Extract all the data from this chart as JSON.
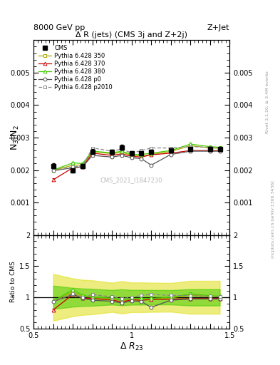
{
  "title": "Δ R (jets) (CMS 3j and Z+2j)",
  "xlabel": "Δ R_{23}",
  "ylabel_main": "N_{3}|N_{2}",
  "ylabel_ratio": "Ratio to CMS",
  "header_left": "8000 GeV pp",
  "header_right": "Z+Jet",
  "watermark": "CMS_2021_I1847230",
  "rivet_text": "Rivet 3.1.10; ≥ 3.4M events",
  "mcplots_text": "mcplots.cern.ch [arXiv:1306.3436]",
  "xlim": [
    0.5,
    1.5
  ],
  "ylim_main": [
    0.0,
    0.006
  ],
  "ylim_ratio": [
    0.5,
    2.0
  ],
  "yticks_main": [
    0.001,
    0.002,
    0.003,
    0.004,
    0.005
  ],
  "yticks_ratio": [
    0.5,
    1.0,
    1.5,
    2.0
  ],
  "x": [
    0.6,
    0.7,
    0.75,
    0.8,
    0.9,
    0.95,
    1.0,
    1.05,
    1.1,
    1.2,
    1.3,
    1.4,
    1.45
  ],
  "cms_y": [
    0.00213,
    0.00198,
    0.00213,
    0.00257,
    0.00256,
    0.0027,
    0.00252,
    0.00252,
    0.00256,
    0.0026,
    0.00265,
    0.00265,
    0.00265
  ],
  "cms_yerr": [
    8e-05,
    6e-05,
    6e-05,
    7e-05,
    6e-05,
    7e-05,
    6e-05,
    6e-05,
    6e-05,
    6e-05,
    7e-05,
    7e-05,
    7e-05
  ],
  "p350_y": [
    0.00199,
    0.00215,
    0.00215,
    0.00257,
    0.0025,
    0.00255,
    0.00245,
    0.00243,
    0.00248,
    0.00257,
    0.00275,
    0.00268,
    0.00267
  ],
  "p350_yerr": [
    4e-05,
    3e-05,
    3e-05,
    4e-05,
    3e-05,
    4e-05,
    3e-05,
    3e-05,
    3e-05,
    4e-05,
    5e-05,
    4e-05,
    4e-05
  ],
  "p370_y": [
    0.0017,
    0.00207,
    0.0021,
    0.00252,
    0.00245,
    0.0025,
    0.00242,
    0.0024,
    0.00247,
    0.00252,
    0.0026,
    0.0026,
    0.0026
  ],
  "p370_yerr": [
    4e-05,
    3e-05,
    3e-05,
    4e-05,
    3e-05,
    4e-05,
    3e-05,
    3e-05,
    3e-05,
    3e-05,
    4e-05,
    4e-05,
    4e-05
  ],
  "p380_y": [
    0.002,
    0.00222,
    0.0022,
    0.00258,
    0.00253,
    0.00258,
    0.00248,
    0.00248,
    0.00252,
    0.0026,
    0.0028,
    0.00272,
    0.0027
  ],
  "p380_yerr": [
    4e-05,
    3e-05,
    3e-05,
    4e-05,
    3e-05,
    4e-05,
    3e-05,
    3e-05,
    3e-05,
    4e-05,
    5e-05,
    4e-05,
    4e-05
  ],
  "p0_y": [
    0.00198,
    0.00207,
    0.0021,
    0.00245,
    0.0024,
    0.00245,
    0.00238,
    0.00235,
    0.00215,
    0.00248,
    0.00258,
    0.00258,
    0.00258
  ],
  "p0_yerr": [
    4e-05,
    3e-05,
    3e-05,
    4e-05,
    3e-05,
    4e-05,
    3e-05,
    3e-05,
    3e-05,
    3e-05,
    4e-05,
    4e-05,
    4e-05
  ],
  "p2010_y": [
    0.00198,
    0.0021,
    0.00212,
    0.00268,
    0.00258,
    0.00265,
    0.00252,
    0.0026,
    0.00268,
    0.00268,
    0.00272,
    0.0027,
    0.00268
  ],
  "p2010_yerr": [
    4e-05,
    3e-05,
    3e-05,
    4e-05,
    3e-05,
    4e-05,
    3e-05,
    3e-05,
    3e-05,
    4e-05,
    4e-05,
    4e-05,
    4e-05
  ],
  "color_cms": "#000000",
  "color_p350": "#aaaa00",
  "color_p370": "#cc0000",
  "color_p380": "#44cc00",
  "color_p0": "#555555",
  "color_p2010": "#888888",
  "band_inner_color": "#44cc00",
  "band_outer_color": "#dddd00",
  "band_inner_alpha": 0.55,
  "band_outer_alpha": 0.5,
  "band_outer_scale": 10.0,
  "band_inner_scale": 5.0
}
